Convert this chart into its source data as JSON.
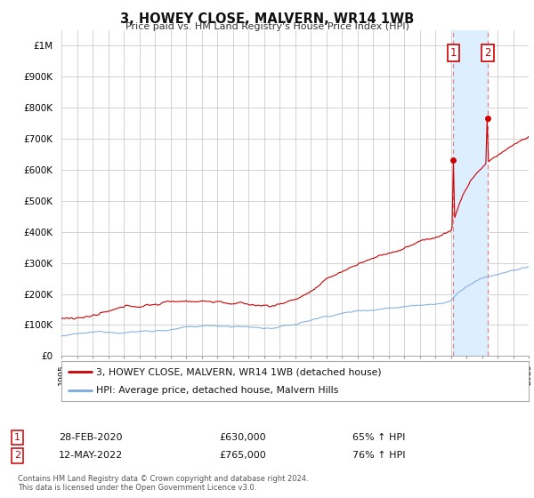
{
  "title": "3, HOWEY CLOSE, MALVERN, WR14 1WB",
  "subtitle": "Price paid vs. HM Land Registry's House Price Index (HPI)",
  "yticks": [
    0,
    100000,
    200000,
    300000,
    400000,
    500000,
    600000,
    700000,
    800000,
    900000,
    1000000
  ],
  "ytick_labels": [
    "£0",
    "£100K",
    "£200K",
    "£300K",
    "£400K",
    "£500K",
    "£600K",
    "£700K",
    "£800K",
    "£900K",
    "£1M"
  ],
  "xmin": 1995,
  "xmax": 2025,
  "sale1_date": 2020.17,
  "sale1_price": 630000,
  "sale1_text": "28-FEB-2020",
  "sale1_amount": "£630,000",
  "sale1_hpi": "65% ↑ HPI",
  "sale2_date": 2022.37,
  "sale2_price": 765000,
  "sale2_text": "12-MAY-2022",
  "sale2_amount": "£765,000",
  "sale2_hpi": "76% ↑ HPI",
  "hpi_color": "#7aaadd",
  "price_color": "#cc0000",
  "vline_color": "#dd8888",
  "vregion_color": "#ddeeff",
  "background_color": "#ffffff",
  "grid_color": "#cccccc",
  "legend_label1": "3, HOWEY CLOSE, MALVERN, WR14 1WB (detached house)",
  "legend_label2": "HPI: Average price, detached house, Malvern Hills",
  "footnote": "Contains HM Land Registry data © Crown copyright and database right 2024.\nThis data is licensed under the Open Government Licence v3.0."
}
